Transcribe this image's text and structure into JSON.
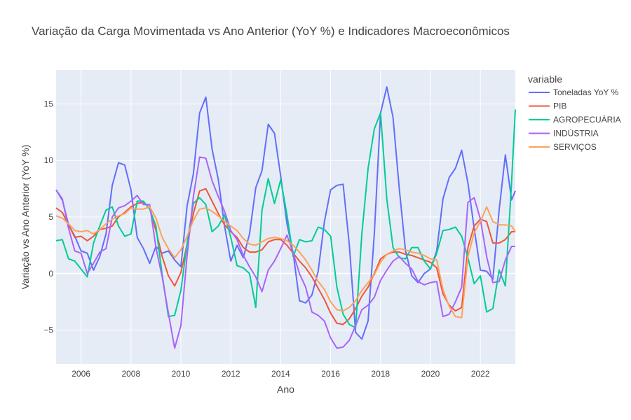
{
  "chart_data": {
    "type": "line",
    "title": "Variação da Carga Movimentada vs Ano Anterior (YoY %) e Indicadores Macroeconômicos",
    "xlabel": "Ano",
    "ylabel": "Variação vs Ano Anterior (YoY %)",
    "xlim": [
      2005.0,
      2023.4
    ],
    "ylim": [
      -8,
      18
    ],
    "x_ticks": [
      2006,
      2008,
      2010,
      2012,
      2014,
      2016,
      2018,
      2020,
      2022
    ],
    "y_ticks": [
      -5,
      0,
      5,
      10,
      15
    ],
    "grid": true,
    "legend": {
      "title": "variable",
      "placement": "right"
    },
    "x": [
      2005.0,
      2005.25,
      2005.5,
      2005.75,
      2006.0,
      2006.25,
      2006.5,
      2006.75,
      2007.0,
      2007.25,
      2007.5,
      2007.75,
      2008.0,
      2008.25,
      2008.5,
      2008.75,
      2009.0,
      2009.25,
      2009.5,
      2009.75,
      2010.0,
      2010.25,
      2010.5,
      2010.75,
      2011.0,
      2011.25,
      2011.5,
      2011.75,
      2012.0,
      2012.25,
      2012.5,
      2012.75,
      2013.0,
      2013.25,
      2013.5,
      2013.75,
      2014.0,
      2014.25,
      2014.5,
      2014.75,
      2015.0,
      2015.25,
      2015.5,
      2015.75,
      2016.0,
      2016.25,
      2016.5,
      2016.75,
      2017.0,
      2017.25,
      2017.5,
      2017.75,
      2018.0,
      2018.25,
      2018.5,
      2018.75,
      2019.0,
      2019.25,
      2019.5,
      2019.75,
      2020.0,
      2020.25,
      2020.5,
      2020.75,
      2021.0,
      2021.25,
      2021.5,
      2021.75,
      2022.0,
      2022.25,
      2022.5,
      2022.75,
      2023.0,
      2023.25,
      2023.4
    ],
    "series": [
      {
        "name": "Toneladas YoY %",
        "color": "#636efa",
        "values": [
          7.4,
          6.5,
          4.3,
          3.3,
          2.0,
          1.8,
          0.3,
          1.5,
          3.5,
          7.8,
          9.8,
          9.6,
          7.4,
          3.2,
          2.2,
          0.9,
          2.4,
          1.8,
          2.0,
          1.2,
          0.6,
          6.0,
          8.8,
          14.2,
          15.6,
          11.0,
          8.3,
          4.2,
          1.1,
          2.5,
          1.4,
          3.5,
          7.6,
          9.1,
          13.2,
          12.4,
          8.6,
          4.4,
          1.8,
          -2.4,
          -2.6,
          -1.9,
          0.2,
          4.6,
          7.4,
          7.8,
          7.9,
          2.5,
          -5.2,
          -5.8,
          -4.2,
          3.5,
          14.2,
          16.5,
          13.8,
          7.5,
          2.0,
          -0.2,
          -0.8,
          0.0,
          0.4,
          2.0,
          6.6,
          8.5,
          9.3,
          10.9,
          8.0,
          4.0,
          0.3,
          0.2,
          -0.5,
          5.6,
          10.5,
          6.5,
          7.3
        ]
      },
      {
        "name": "PIB",
        "color": "#EF553B",
        "values": [
          5.8,
          5.4,
          4.3,
          3.2,
          3.3,
          2.9,
          3.3,
          3.9,
          4.0,
          4.2,
          5.0,
          5.4,
          5.9,
          6.2,
          6.3,
          5.8,
          3.8,
          1.5,
          -0.2,
          -1.1,
          0.1,
          2.6,
          5.3,
          7.3,
          7.5,
          6.4,
          5.3,
          4.3,
          3.7,
          3.2,
          2.3,
          1.9,
          1.9,
          2.1,
          2.8,
          3.0,
          3.0,
          2.5,
          1.8,
          1.1,
          0.5,
          -0.3,
          -1.3,
          -2.3,
          -3.5,
          -4.4,
          -4.5,
          -4.0,
          -3.1,
          -2.0,
          -1.2,
          0.0,
          1.3,
          1.7,
          1.9,
          1.9,
          1.7,
          1.6,
          1.4,
          1.2,
          1.0,
          0.5,
          -1.8,
          -2.8,
          -3.3,
          -3.0,
          2.3,
          4.2,
          4.8,
          4.6,
          2.7,
          2.7,
          3.0,
          3.7,
          3.7
        ]
      },
      {
        "name": "AGROPECUÁRIA",
        "color": "#00cc96",
        "values": [
          2.9,
          3.0,
          1.3,
          1.1,
          0.4,
          -0.3,
          2.7,
          4.2,
          5.6,
          5.9,
          4.2,
          3.3,
          3.5,
          6.4,
          6.4,
          5.7,
          4.2,
          -0.1,
          -3.8,
          -3.7,
          -1.5,
          2.7,
          6.2,
          6.7,
          6.1,
          3.7,
          4.2,
          5.2,
          3.2,
          0.7,
          0.5,
          0.0,
          -3.0,
          5.6,
          8.4,
          6.2,
          8.3,
          5.2,
          1.5,
          3.0,
          2.8,
          2.9,
          4.1,
          3.9,
          3.3,
          -1.2,
          -3.6,
          -4.5,
          -4.8,
          3.5,
          9.3,
          12.8,
          14.2,
          6.6,
          2.3,
          1.4,
          1.3,
          2.3,
          2.3,
          1.1,
          0.4,
          1.8,
          3.8,
          3.9,
          4.1,
          3.3,
          1.4,
          -0.9,
          -0.2,
          -3.4,
          -3.1,
          0.3,
          -1.1,
          8.1,
          14.5
        ]
      },
      {
        "name": "INDÚSTRIA",
        "color": "#ab63fa",
        "values": [
          7.4,
          6.6,
          4.0,
          2.0,
          1.8,
          0.0,
          0.9,
          1.9,
          2.2,
          5.0,
          5.8,
          6.0,
          6.4,
          6.9,
          6.1,
          6.1,
          2.3,
          -0.3,
          -3.5,
          -6.6,
          -4.6,
          1.6,
          6.8,
          10.3,
          10.2,
          8.2,
          6.8,
          5.5,
          3.8,
          3.0,
          1.6,
          0.6,
          -0.3,
          -1.6,
          0.3,
          1.1,
          2.2,
          3.4,
          1.8,
          0.0,
          -1.2,
          -3.4,
          -3.7,
          -4.2,
          -5.7,
          -6.6,
          -6.5,
          -5.9,
          -4.6,
          -3.2,
          -2.8,
          -2.1,
          -0.6,
          0.3,
          1.1,
          1.5,
          0.9,
          0.4,
          -0.7,
          -1.0,
          -0.8,
          -0.7,
          -3.8,
          -3.6,
          -2.5,
          -1.2,
          6.3,
          6.7,
          4.8,
          1.5,
          -0.8,
          -0.7,
          1.2,
          2.4,
          2.4
        ]
      },
      {
        "name": "SERVIÇOS",
        "color": "#FFA15A",
        "values": [
          5.1,
          4.9,
          4.4,
          3.8,
          3.7,
          3.8,
          3.5,
          3.9,
          4.4,
          4.8,
          5.1,
          5.3,
          5.8,
          5.7,
          5.7,
          5.9,
          4.9,
          3.2,
          2.2,
          1.4,
          2.1,
          3.3,
          4.7,
          5.7,
          5.8,
          5.5,
          5.1,
          4.6,
          4.2,
          3.8,
          3.1,
          2.6,
          2.5,
          2.8,
          3.1,
          3.2,
          3.1,
          2.9,
          2.5,
          1.9,
          1.2,
          0.3,
          -0.7,
          -1.4,
          -2.5,
          -3.2,
          -3.3,
          -3.0,
          -2.4,
          -1.5,
          -0.8,
          -0.1,
          1.0,
          1.7,
          2.0,
          2.2,
          2.1,
          1.9,
          1.8,
          1.6,
          1.3,
          1.2,
          -1.4,
          -2.9,
          -3.8,
          -3.9,
          1.5,
          3.6,
          4.6,
          5.9,
          4.6,
          4.3,
          4.3,
          4.2,
          3.7
        ]
      }
    ]
  }
}
